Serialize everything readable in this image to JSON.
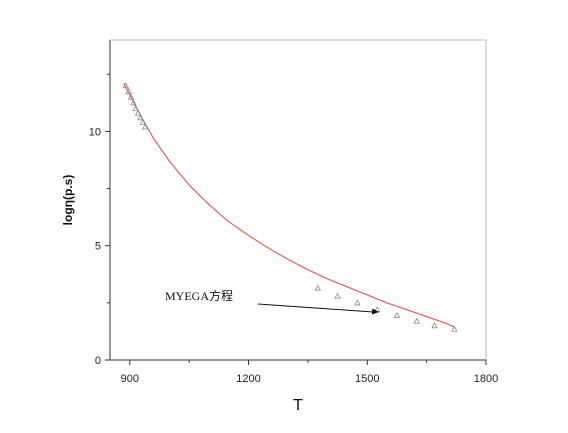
{
  "chart_data": {
    "type": "scatter",
    "title": "",
    "xlabel": "T",
    "ylabel": "logη(p.s)",
    "xlim": [
      850,
      1800
    ],
    "ylim": [
      0,
      14
    ],
    "xticks": [
      900,
      1200,
      1500,
      1800
    ],
    "yticks": [
      0,
      5,
      10
    ],
    "x_tick_labels": [
      "900",
      "1200",
      "1500",
      "1800"
    ],
    "y_tick_labels": [
      "0",
      "5",
      "10"
    ],
    "grid": false,
    "legend": "none",
    "colors": {
      "fit_line": "#e06060",
      "markers": "#888888",
      "axes": "#333333",
      "arrow": "#111111"
    },
    "series": [
      {
        "kind": "measured",
        "marker": "triangle-open",
        "x": [
          890,
          897,
          903,
          909,
          915,
          921,
          927,
          933,
          939,
          1375,
          1425,
          1475,
          1525,
          1575,
          1625,
          1670,
          1720
        ],
        "y": [
          12.0,
          11.75,
          11.5,
          11.25,
          11.0,
          10.8,
          10.6,
          10.4,
          10.2,
          3.15,
          2.8,
          2.5,
          2.2,
          1.95,
          1.7,
          1.5,
          1.35
        ]
      },
      {
        "kind": "fit",
        "x": [
          885,
          900,
          930,
          960,
          1000,
          1050,
          1100,
          1150,
          1200,
          1250,
          1300,
          1350,
          1400,
          1450,
          1500,
          1550,
          1600,
          1650,
          1700,
          1720
        ],
        "y": [
          12.1,
          11.6,
          10.6,
          9.7,
          8.7,
          7.65,
          6.8,
          6.05,
          5.45,
          4.9,
          4.4,
          3.95,
          3.55,
          3.2,
          2.85,
          2.5,
          2.2,
          1.9,
          1.6,
          1.45
        ]
      }
    ],
    "annotations": [
      {
        "text": "MYEGA方程",
        "points_to": {
          "x": 1530,
          "y": 2.1
        }
      }
    ]
  }
}
